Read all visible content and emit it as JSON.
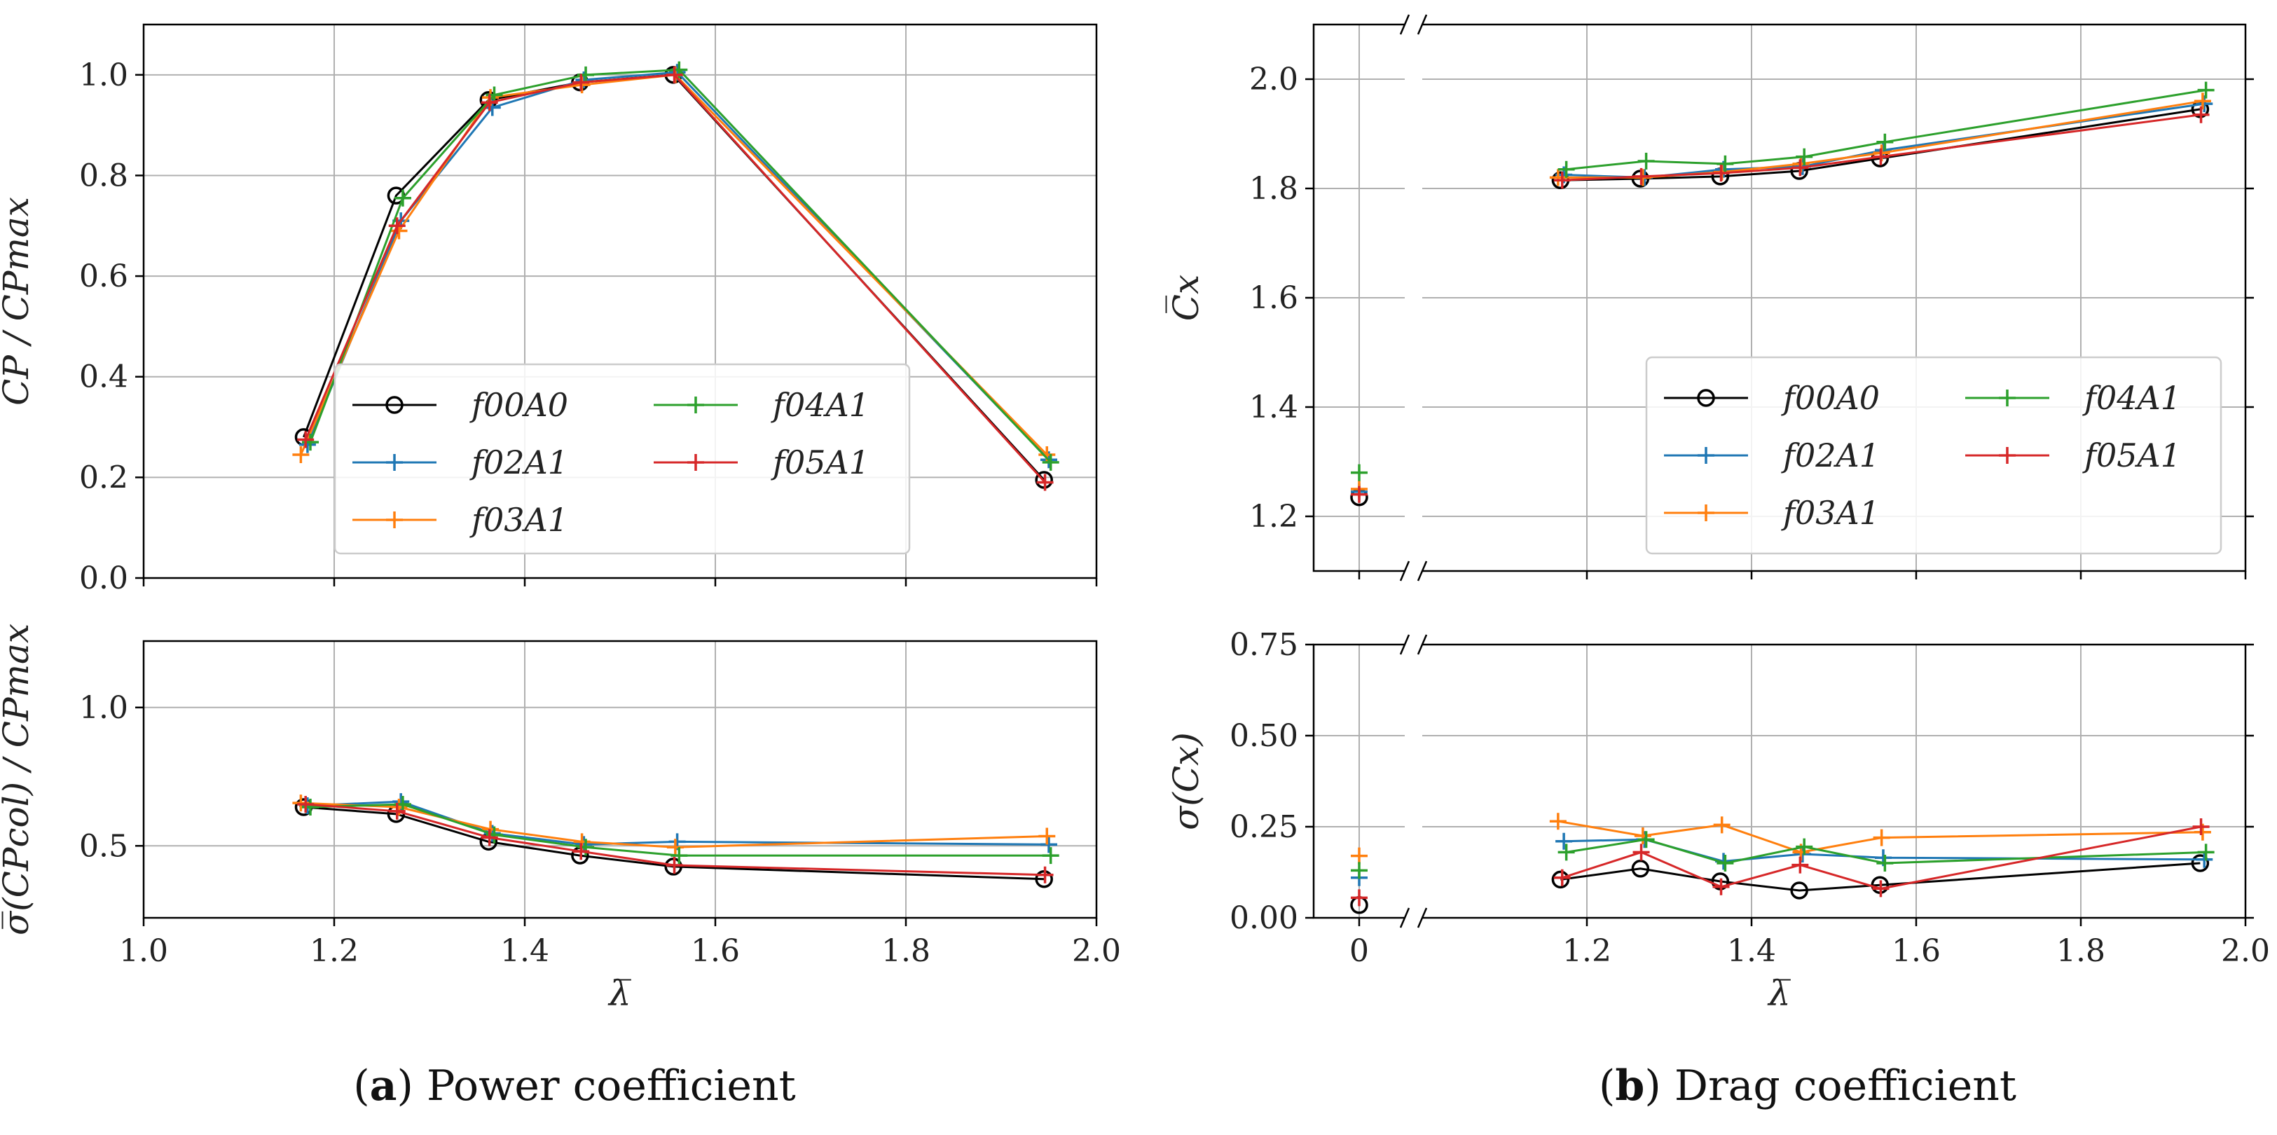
{
  "captions": {
    "a_label": "a",
    "a_text": "Power coefficient",
    "b_label": "b",
    "b_text": "Drag coefficient"
  },
  "series_colors": {
    "f00A0": "#000000",
    "f02A1": "#1f77b4",
    "f03A1": "#ff7f0e",
    "f04A1": "#2ca02c",
    "f05A1": "#d62728"
  },
  "chart_data": [
    {
      "id": "a_top",
      "type": "line",
      "ylabel": "C̅P / C̅Pmax",
      "xlabel": "",
      "xlim": [
        1.0,
        2.0
      ],
      "ylim": [
        0.0,
        1.1
      ],
      "xticks": [
        1.0,
        1.2,
        1.4,
        1.6,
        1.8,
        2.0
      ],
      "yticks": [
        0.0,
        0.2,
        0.4,
        0.6,
        0.8,
        1.0
      ],
      "xtick_labels_visible": false,
      "legend": {
        "placement": "lower-center",
        "columns": 2,
        "order": [
          "f00A0",
          "f02A1",
          "f03A1",
          "f04A1",
          "f05A1"
        ]
      },
      "series": [
        {
          "name": "f00A0",
          "marker": "circle",
          "x": [
            1.168,
            1.265,
            1.362,
            1.458,
            1.556,
            1.945
          ],
          "y": [
            0.28,
            0.76,
            0.95,
            0.985,
            1.0,
            0.195
          ]
        },
        {
          "name": "f02A1",
          "marker": "plus",
          "x": [
            1.172,
            1.27,
            1.366,
            1.462,
            1.56,
            1.95
          ],
          "y": [
            0.265,
            0.71,
            0.935,
            0.99,
            1.005,
            0.235
          ]
        },
        {
          "name": "f03A1",
          "marker": "plus",
          "x": [
            1.165,
            1.268,
            1.364,
            1.46,
            1.558,
            1.948
          ],
          "y": [
            0.245,
            0.69,
            0.955,
            0.98,
            1.0,
            0.245
          ]
        },
        {
          "name": "f04A1",
          "marker": "plus",
          "x": [
            1.175,
            1.272,
            1.368,
            1.464,
            1.562,
            1.952
          ],
          "y": [
            0.27,
            0.755,
            0.96,
            1.0,
            1.01,
            0.23
          ]
        },
        {
          "name": "f05A1",
          "marker": "plus",
          "x": [
            1.17,
            1.266,
            1.363,
            1.459,
            1.557,
            1.946
          ],
          "y": [
            0.275,
            0.7,
            0.945,
            0.985,
            1.0,
            0.19
          ]
        }
      ]
    },
    {
      "id": "a_bottom",
      "type": "line",
      "ylabel": "σ̅(CPcol) / C̅Pmax",
      "xlabel": "λ̅",
      "xlim": [
        1.0,
        2.0
      ],
      "ylim": [
        0.24,
        1.24
      ],
      "xticks": [
        1.0,
        1.2,
        1.4,
        1.6,
        1.8,
        2.0
      ],
      "yticks": [
        0.5,
        1.0
      ],
      "xtick_labels_visible": true,
      "series": [
        {
          "name": "f00A0",
          "marker": "circle",
          "x": [
            1.168,
            1.265,
            1.362,
            1.458,
            1.556,
            1.945
          ],
          "y": [
            0.64,
            0.615,
            0.515,
            0.465,
            0.425,
            0.38
          ]
        },
        {
          "name": "f02A1",
          "marker": "plus",
          "x": [
            1.172,
            1.27,
            1.366,
            1.462,
            1.56,
            1.95
          ],
          "y": [
            0.645,
            0.66,
            0.545,
            0.505,
            0.515,
            0.505
          ]
        },
        {
          "name": "f03A1",
          "marker": "plus",
          "x": [
            1.165,
            1.268,
            1.364,
            1.46,
            1.558,
            1.948
          ],
          "y": [
            0.655,
            0.64,
            0.56,
            0.515,
            0.495,
            0.535
          ]
        },
        {
          "name": "f04A1",
          "marker": "plus",
          "x": [
            1.175,
            1.272,
            1.368,
            1.464,
            1.562,
            1.952
          ],
          "y": [
            0.64,
            0.65,
            0.54,
            0.495,
            0.465,
            0.465
          ]
        },
        {
          "name": "f05A1",
          "marker": "plus",
          "x": [
            1.17,
            1.266,
            1.363,
            1.459,
            1.557,
            1.946
          ],
          "y": [
            0.65,
            0.625,
            0.53,
            0.48,
            0.43,
            0.395
          ]
        }
      ]
    },
    {
      "id": "b_top",
      "type": "line",
      "ylabel": "C̅x",
      "xlabel": "",
      "broken_x_axis": true,
      "left_segment_xticks": [
        0
      ],
      "xlim": [
        1.0,
        2.0
      ],
      "ylim": [
        1.1,
        2.1
      ],
      "xticks": [
        1.2,
        1.4,
        1.6,
        1.8,
        2.0
      ],
      "yticks": [
        1.2,
        1.4,
        1.6,
        1.8,
        2.0
      ],
      "xtick_labels_visible": false,
      "legend": {
        "placement": "lower-right",
        "columns": 2,
        "order": [
          "f00A0",
          "f02A1",
          "f03A1",
          "f04A1",
          "f05A1"
        ]
      },
      "series": [
        {
          "name": "f00A0",
          "marker": "circle",
          "x0_value": 1.235,
          "x": [
            1.168,
            1.265,
            1.362,
            1.458,
            1.556,
            1.945
          ],
          "y": [
            1.815,
            1.818,
            1.822,
            1.832,
            1.855,
            1.945
          ]
        },
        {
          "name": "f02A1",
          "marker": "plus",
          "x0_value": 1.245,
          "x": [
            1.172,
            1.27,
            1.366,
            1.462,
            1.56,
            1.95
          ],
          "y": [
            1.825,
            1.82,
            1.835,
            1.84,
            1.87,
            1.955
          ]
        },
        {
          "name": "f03A1",
          "marker": "plus",
          "x0_value": 1.25,
          "x": [
            1.165,
            1.268,
            1.364,
            1.46,
            1.558,
            1.948
          ],
          "y": [
            1.82,
            1.82,
            1.83,
            1.845,
            1.865,
            1.96
          ]
        },
        {
          "name": "f04A1",
          "marker": "plus",
          "x0_value": 1.28,
          "x": [
            1.175,
            1.272,
            1.368,
            1.464,
            1.562,
            1.952
          ],
          "y": [
            1.835,
            1.85,
            1.845,
            1.858,
            1.885,
            1.98
          ]
        },
        {
          "name": "f05A1",
          "marker": "plus",
          "x0_value": 1.24,
          "x": [
            1.17,
            1.266,
            1.363,
            1.459,
            1.557,
            1.946
          ],
          "y": [
            1.815,
            1.822,
            1.828,
            1.838,
            1.858,
            1.935
          ]
        }
      ]
    },
    {
      "id": "b_bottom",
      "type": "line",
      "ylabel": "σ(Cx)",
      "xlabel": "λ̅",
      "broken_x_axis": true,
      "left_segment_xticks": [
        0
      ],
      "xlim": [
        1.0,
        2.0
      ],
      "ylim": [
        0.0,
        0.75
      ],
      "xticks": [
        1.2,
        1.4,
        1.6,
        1.8,
        2.0
      ],
      "yticks": [
        0.0,
        0.25,
        0.5,
        0.75
      ],
      "xtick_labels_visible": true,
      "series": [
        {
          "name": "f00A0",
          "marker": "circle",
          "x0_value": 0.035,
          "x": [
            1.168,
            1.265,
            1.362,
            1.458,
            1.556,
            1.945
          ],
          "y": [
            0.105,
            0.135,
            0.1,
            0.075,
            0.09,
            0.15
          ]
        },
        {
          "name": "f02A1",
          "marker": "plus",
          "x0_value": 0.11,
          "x": [
            1.172,
            1.27,
            1.366,
            1.462,
            1.56,
            1.95
          ],
          "y": [
            0.21,
            0.215,
            0.155,
            0.175,
            0.165,
            0.16
          ]
        },
        {
          "name": "f03A1",
          "marker": "plus",
          "x0_value": 0.17,
          "x": [
            1.165,
            1.268,
            1.364,
            1.46,
            1.558,
            1.948
          ],
          "y": [
            0.265,
            0.225,
            0.255,
            0.18,
            0.22,
            0.235
          ]
        },
        {
          "name": "f04A1",
          "marker": "plus",
          "x0_value": 0.13,
          "x": [
            1.175,
            1.272,
            1.368,
            1.464,
            1.562,
            1.952
          ],
          "y": [
            0.18,
            0.215,
            0.15,
            0.195,
            0.15,
            0.18
          ]
        },
        {
          "name": "f05A1",
          "marker": "plus",
          "x0_value": 0.055,
          "x": [
            1.17,
            1.266,
            1.363,
            1.459,
            1.557,
            1.946
          ],
          "y": [
            0.11,
            0.18,
            0.085,
            0.145,
            0.08,
            0.25
          ]
        }
      ]
    }
  ]
}
